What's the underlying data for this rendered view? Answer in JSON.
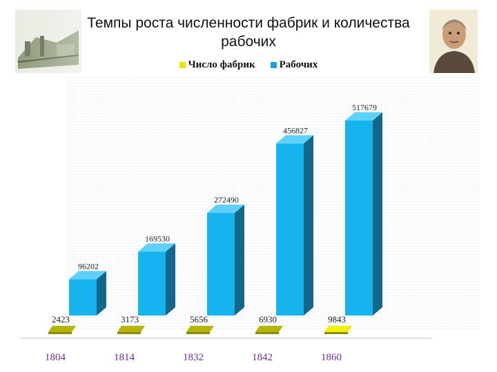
{
  "title_line1": "Темпы роста численности фабрик и количества",
  "title_line2": "рабочих",
  "legend": [
    {
      "label": "Число фабрик",
      "color": "#e6e600"
    },
    {
      "label": "Рабочих",
      "color": "#1aa3e0"
    }
  ],
  "decorations": {
    "left": "factory-illustration",
    "right": "portrait-illustration"
  },
  "chart_data": {
    "type": "bar",
    "categories": [
      "1804",
      "1814",
      "1832",
      "1842",
      "1860"
    ],
    "series": [
      {
        "name": "Число фабрик",
        "values": [
          2423,
          3173,
          5656,
          6930,
          9843
        ],
        "color": "#b5b500"
      },
      {
        "name": "Рабочих",
        "values": [
          96202,
          169530,
          272490,
          456827,
          517679
        ],
        "color": "#15b4ef"
      }
    ],
    "ylim": [
      0,
      600000
    ],
    "grid": false,
    "legend_position": "top",
    "category_label_color": "#6b2c8f"
  }
}
